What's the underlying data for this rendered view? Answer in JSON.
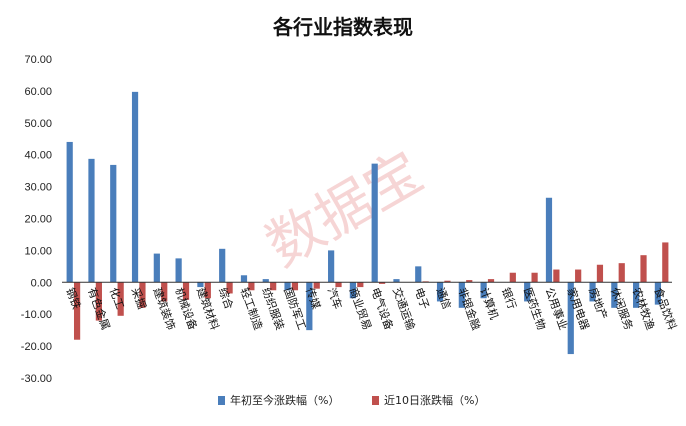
{
  "chart_data": {
    "type": "bar",
    "title": "各行业指数表现",
    "watermark": "数据宝",
    "ylim": [
      -30,
      70
    ],
    "yticks": [
      "70.00",
      "60.00",
      "50.00",
      "40.00",
      "30.00",
      "20.00",
      "10.00",
      "0.00",
      "-10.00",
      "-20.00",
      "-30.00"
    ],
    "grid": false,
    "legend_position": "bottom",
    "categories": [
      "钢铁",
      "有色金属",
      "化工",
      "采掘",
      "建筑装饰",
      "机械设备",
      "建筑材料",
      "综合",
      "轻工制造",
      "纺织服装",
      "国防军工",
      "传媒",
      "汽车",
      "商业贸易",
      "电气设备",
      "交通运输",
      "电子",
      "通信",
      "非银金融",
      "计算机",
      "银行",
      "医药生物",
      "公用事业",
      "家用电器",
      "房地产",
      "休闲服务",
      "农林牧渔",
      "食品饮料"
    ],
    "series": [
      {
        "name": "年初至今涨跌幅（%）",
        "color": "#4a7ebb",
        "values": [
          44.0,
          38.7,
          36.8,
          59.7,
          9.0,
          7.5,
          -1.5,
          10.5,
          2.2,
          1.0,
          -2.5,
          -15.0,
          10.0,
          -5.0,
          37.2,
          1.0,
          5.0,
          -6.0,
          -8.0,
          -5.0,
          0.0,
          -6.0,
          26.5,
          -22.5,
          -6.0,
          -8.0,
          -8.0,
          -7.0
        ]
      },
      {
        "name": "近10日涨跌幅（%）",
        "color": "#c0504d",
        "values": [
          -18.0,
          -12.0,
          -10.5,
          -8.0,
          -6.0,
          -5.5,
          -5.0,
          -3.5,
          -2.5,
          -2.5,
          -2.5,
          -2.0,
          -1.5,
          -1.5,
          -0.5,
          0.0,
          0.3,
          0.5,
          0.7,
          1.0,
          3.0,
          3.0,
          4.0,
          4.0,
          5.5,
          6.0,
          8.5,
          12.5
        ]
      }
    ]
  }
}
